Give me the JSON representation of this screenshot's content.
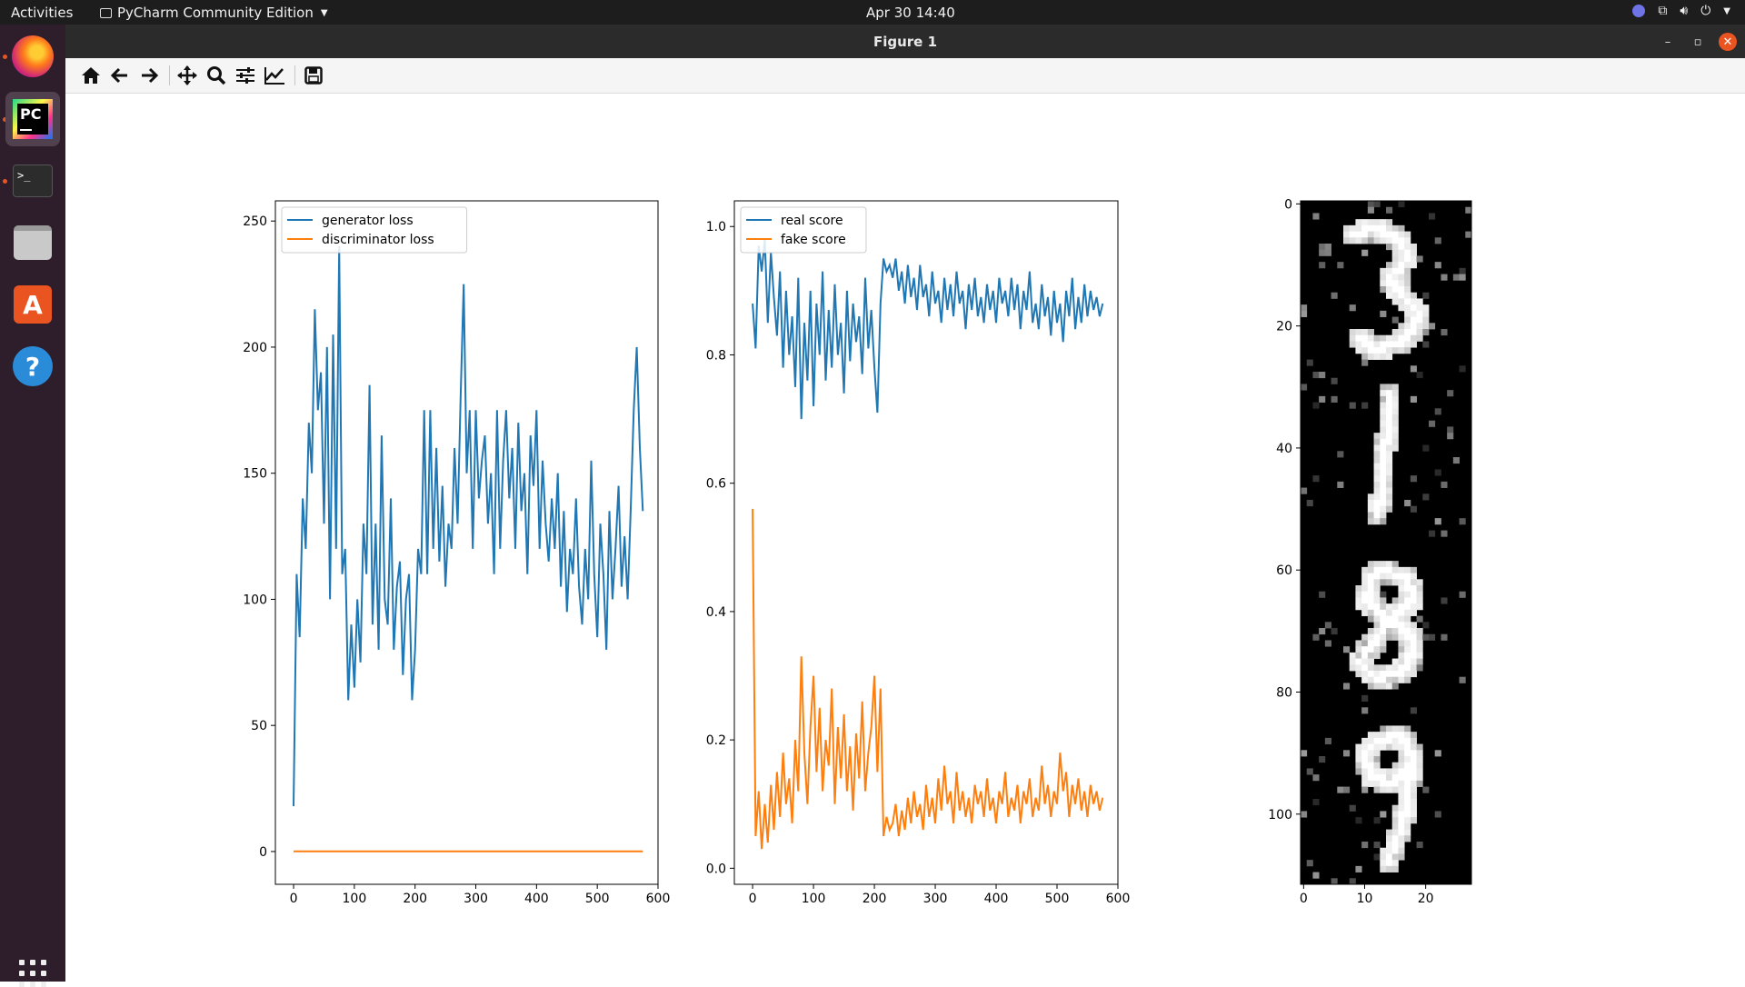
{
  "topbar": {
    "activities": "Activities",
    "app_name": "PyCharm Community Edition",
    "clock": "Apr 30  14:40"
  },
  "dock": {
    "items": [
      "firefox",
      "pycharm",
      "terminal",
      "files",
      "software",
      "help",
      "show-apps"
    ]
  },
  "window": {
    "title": "Figure 1"
  },
  "toolbar": {
    "buttons": [
      "home-icon",
      "back-icon",
      "forward-icon",
      "pan-icon",
      "zoom-icon",
      "configure-subplots-icon",
      "edit-axis-icon",
      "save-icon"
    ]
  },
  "colors": {
    "series_blue": "#1f77b4",
    "series_orange": "#ff7f0e"
  },
  "chart_data": [
    {
      "type": "line",
      "xlim": [
        -30,
        600
      ],
      "ylim": [
        -13,
        258
      ],
      "xticks": [
        "0",
        "100",
        "200",
        "300",
        "400",
        "500",
        "600"
      ],
      "yticks": [
        "0",
        "50",
        "100",
        "150",
        "200",
        "250"
      ],
      "legend": "top-left",
      "series": [
        {
          "name": "generator loss",
          "color": "#1f77b4",
          "x": [
            0,
            5,
            10,
            15,
            20,
            25,
            30,
            35,
            40,
            45,
            50,
            55,
            60,
            65,
            70,
            75,
            80,
            85,
            90,
            95,
            100,
            105,
            110,
            115,
            120,
            125,
            130,
            135,
            140,
            145,
            150,
            155,
            160,
            165,
            170,
            175,
            180,
            185,
            190,
            195,
            200,
            205,
            210,
            215,
            220,
            225,
            230,
            235,
            240,
            245,
            250,
            255,
            260,
            265,
            270,
            275,
            280,
            285,
            290,
            295,
            300,
            305,
            310,
            315,
            320,
            325,
            330,
            335,
            340,
            345,
            350,
            355,
            360,
            365,
            370,
            375,
            380,
            385,
            390,
            395,
            400,
            405,
            410,
            415,
            420,
            425,
            430,
            435,
            440,
            445,
            450,
            455,
            460,
            465,
            470,
            475,
            480,
            485,
            490,
            495,
            500,
            505,
            510,
            515,
            520,
            525,
            530,
            535,
            540,
            545,
            550,
            555,
            560,
            565,
            570,
            575
          ],
          "values": [
            18,
            110,
            85,
            140,
            120,
            170,
            150,
            215,
            175,
            190,
            130,
            200,
            100,
            205,
            120,
            240,
            110,
            120,
            60,
            90,
            65,
            100,
            75,
            130,
            110,
            185,
            90,
            130,
            80,
            165,
            100,
            90,
            140,
            80,
            105,
            115,
            70,
            100,
            110,
            60,
            80,
            120,
            110,
            175,
            110,
            175,
            120,
            160,
            115,
            145,
            105,
            130,
            120,
            160,
            130,
            180,
            225,
            150,
            175,
            120,
            175,
            140,
            155,
            165,
            130,
            150,
            110,
            175,
            120,
            155,
            175,
            140,
            160,
            120,
            170,
            135,
            150,
            110,
            165,
            145,
            175,
            120,
            155,
            130,
            115,
            140,
            120,
            150,
            105,
            135,
            95,
            120,
            110,
            140,
            105,
            90,
            120,
            100,
            155,
            110,
            85,
            130,
            110,
            80,
            135,
            100,
            120,
            145,
            105,
            125,
            100,
            135,
            175,
            200,
            160,
            135
          ],
          "note_peaks": "peaks reach about 240 near x=75 and 228 near x=300; minima near 55 around x=205"
        },
        {
          "name": "discriminator loss",
          "color": "#ff7f0e",
          "x": [
            0,
            575
          ],
          "values": [
            0.05,
            0.05
          ]
        }
      ]
    },
    {
      "type": "line",
      "xlim": [
        -30,
        600
      ],
      "ylim": [
        -0.025,
        1.04
      ],
      "xticks": [
        "0",
        "100",
        "200",
        "300",
        "400",
        "500",
        "600"
      ],
      "yticks": [
        "0.0",
        "0.2",
        "0.4",
        "0.6",
        "0.8",
        "1.0"
      ],
      "legend": "top-left",
      "series": [
        {
          "name": "real score",
          "color": "#1f77b4",
          "x": [
            0,
            5,
            10,
            15,
            20,
            25,
            30,
            35,
            40,
            45,
            50,
            55,
            60,
            65,
            70,
            75,
            80,
            85,
            90,
            95,
            100,
            105,
            110,
            115,
            120,
            125,
            130,
            135,
            140,
            145,
            150,
            155,
            160,
            165,
            170,
            175,
            180,
            185,
            190,
            195,
            200,
            205,
            210,
            215,
            220,
            225,
            230,
            235,
            240,
            245,
            250,
            255,
            260,
            265,
            270,
            275,
            280,
            285,
            290,
            295,
            300,
            305,
            310,
            315,
            320,
            325,
            330,
            335,
            340,
            345,
            350,
            355,
            360,
            365,
            370,
            375,
            380,
            385,
            390,
            395,
            400,
            405,
            410,
            415,
            420,
            425,
            430,
            435,
            440,
            445,
            450,
            455,
            460,
            465,
            470,
            475,
            480,
            485,
            490,
            495,
            500,
            505,
            510,
            515,
            520,
            525,
            530,
            535,
            540,
            545,
            550,
            555,
            560,
            565,
            570,
            575
          ],
          "values": [
            0.88,
            0.81,
            0.97,
            0.93,
            0.98,
            0.85,
            0.96,
            0.89,
            0.83,
            0.93,
            0.78,
            0.9,
            0.8,
            0.86,
            0.75,
            0.92,
            0.7,
            0.85,
            0.76,
            0.9,
            0.72,
            0.88,
            0.8,
            0.93,
            0.76,
            0.87,
            0.78,
            0.91,
            0.8,
            0.85,
            0.74,
            0.9,
            0.79,
            0.88,
            0.82,
            0.86,
            0.77,
            0.92,
            0.81,
            0.87,
            0.78,
            0.71,
            0.88,
            0.95,
            0.93,
            0.94,
            0.92,
            0.95,
            0.9,
            0.93,
            0.88,
            0.94,
            0.89,
            0.92,
            0.87,
            0.94,
            0.89,
            0.91,
            0.86,
            0.93,
            0.88,
            0.9,
            0.85,
            0.92,
            0.87,
            0.91,
            0.86,
            0.93,
            0.88,
            0.9,
            0.84,
            0.91,
            0.87,
            0.92,
            0.86,
            0.89,
            0.85,
            0.91,
            0.87,
            0.9,
            0.85,
            0.92,
            0.88,
            0.9,
            0.86,
            0.92,
            0.87,
            0.91,
            0.84,
            0.9,
            0.87,
            0.93,
            0.85,
            0.88,
            0.84,
            0.91,
            0.86,
            0.89,
            0.83,
            0.9,
            0.85,
            0.88,
            0.82,
            0.9,
            0.86,
            0.92,
            0.84,
            0.89,
            0.85,
            0.91,
            0.86,
            0.9,
            0.87,
            0.89,
            0.86,
            0.88
          ]
        },
        {
          "name": "fake score",
          "color": "#ff7f0e",
          "x": [
            0,
            5,
            10,
            15,
            20,
            25,
            30,
            35,
            40,
            45,
            50,
            55,
            60,
            65,
            70,
            75,
            80,
            85,
            90,
            95,
            100,
            105,
            110,
            115,
            120,
            125,
            130,
            135,
            140,
            145,
            150,
            155,
            160,
            165,
            170,
            175,
            180,
            185,
            190,
            195,
            200,
            205,
            210,
            215,
            220,
            225,
            230,
            235,
            240,
            245,
            250,
            255,
            260,
            265,
            270,
            275,
            280,
            285,
            290,
            295,
            300,
            305,
            310,
            315,
            320,
            325,
            330,
            335,
            340,
            345,
            350,
            355,
            360,
            365,
            370,
            375,
            380,
            385,
            390,
            395,
            400,
            405,
            410,
            415,
            420,
            425,
            430,
            435,
            440,
            445,
            450,
            455,
            460,
            465,
            470,
            475,
            480,
            485,
            490,
            495,
            500,
            505,
            510,
            515,
            520,
            525,
            530,
            535,
            540,
            545,
            550,
            555,
            560,
            565,
            570,
            575
          ],
          "values": [
            0.56,
            0.05,
            0.12,
            0.03,
            0.1,
            0.04,
            0.13,
            0.06,
            0.15,
            0.08,
            0.18,
            0.1,
            0.14,
            0.07,
            0.2,
            0.12,
            0.33,
            0.18,
            0.1,
            0.22,
            0.3,
            0.15,
            0.25,
            0.12,
            0.2,
            0.16,
            0.28,
            0.1,
            0.22,
            0.14,
            0.24,
            0.12,
            0.19,
            0.09,
            0.21,
            0.14,
            0.26,
            0.12,
            0.18,
            0.22,
            0.3,
            0.15,
            0.28,
            0.05,
            0.08,
            0.06,
            0.07,
            0.1,
            0.05,
            0.09,
            0.06,
            0.11,
            0.07,
            0.12,
            0.08,
            0.1,
            0.06,
            0.13,
            0.08,
            0.11,
            0.07,
            0.14,
            0.09,
            0.16,
            0.1,
            0.12,
            0.07,
            0.15,
            0.09,
            0.12,
            0.08,
            0.11,
            0.07,
            0.13,
            0.1,
            0.12,
            0.08,
            0.14,
            0.09,
            0.11,
            0.07,
            0.12,
            0.1,
            0.15,
            0.08,
            0.11,
            0.09,
            0.13,
            0.07,
            0.12,
            0.1,
            0.14,
            0.08,
            0.11,
            0.09,
            0.16,
            0.1,
            0.13,
            0.08,
            0.12,
            0.1,
            0.18,
            0.12,
            0.15,
            0.08,
            0.13,
            0.1,
            0.14,
            0.09,
            0.12,
            0.08,
            0.13,
            0.1,
            0.12,
            0.09,
            0.11
          ]
        }
      ]
    },
    {
      "type": "heatmap",
      "description_free": true,
      "xlim": [
        -0.5,
        27.5
      ],
      "ylim": [
        111.5,
        -0.5
      ],
      "xticks": [
        "0",
        "10",
        "20"
      ],
      "yticks": [
        "0",
        "20",
        "40",
        "60",
        "80",
        "100"
      ],
      "rows": 112,
      "cols": 28,
      "colormap": "gray"
    }
  ]
}
